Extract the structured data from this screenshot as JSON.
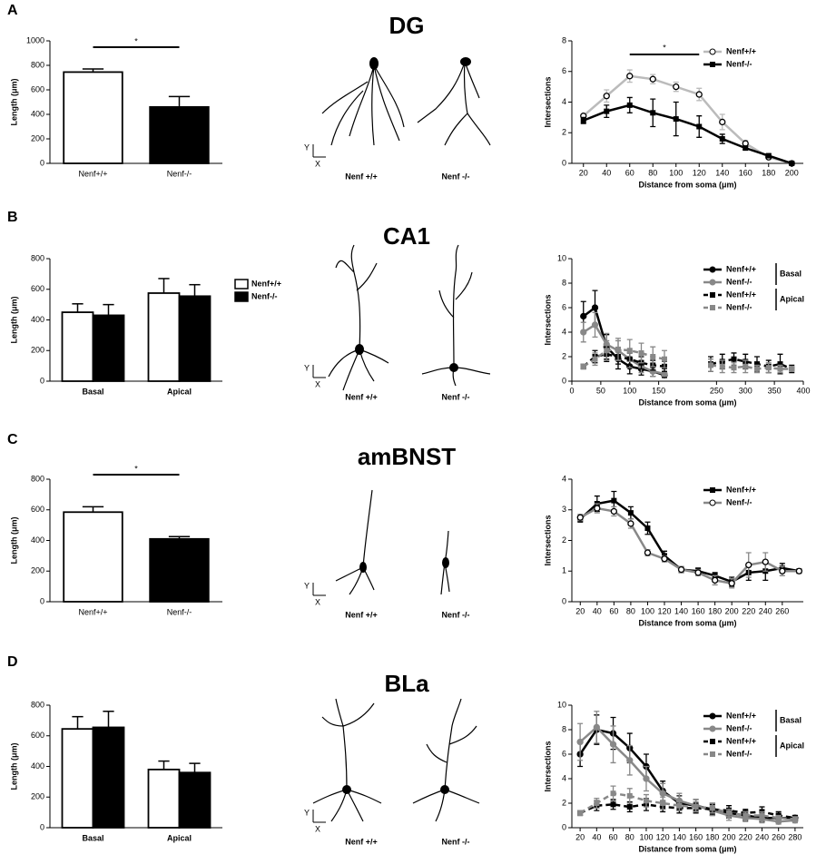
{
  "panels": [
    {
      "letter": "A",
      "title": "DG",
      "neurons": [
        "Nenf +/+",
        "Nenf -/-"
      ]
    },
    {
      "letter": "B",
      "title": "CA1",
      "neurons": [
        "Nenf +/+",
        "Nenf -/-"
      ]
    },
    {
      "letter": "C",
      "title": "amBNST",
      "neurons": [
        "Nenf +/+",
        "Nenf -/-"
      ]
    },
    {
      "letter": "D",
      "title": "BLa",
      "neurons": [
        "Nenf +/+",
        "Nenf -/-"
      ]
    }
  ],
  "compass": {
    "y": "Y",
    "x": "X"
  },
  "chart_data": [
    {
      "type": "bar",
      "ylabel": "Length (μm)",
      "categories": [
        "Nenf+/+",
        "Nenf-/-"
      ],
      "values": [
        745,
        460
      ],
      "errors": [
        25,
        85
      ],
      "colors": [
        "#ffffff",
        "#000000"
      ],
      "ylim": [
        0,
        1000
      ],
      "yticks": [
        0,
        200,
        400,
        600,
        800,
        1000
      ],
      "annotation": "*"
    },
    {
      "type": "line",
      "ylabel": "Intersections",
      "xlabel": "Distance from soma (μm)",
      "x": [
        20,
        40,
        60,
        80,
        100,
        120,
        140,
        160,
        180,
        200
      ],
      "xlim": [
        10,
        210
      ],
      "xticks": [
        20,
        40,
        60,
        80,
        100,
        120,
        140,
        160,
        180,
        200
      ],
      "ylim": [
        0,
        8
      ],
      "yticks": [
        0,
        2,
        4,
        6,
        8
      ],
      "legend": "upper right",
      "annotation": {
        "text": "*",
        "x": [
          60,
          120
        ]
      },
      "series": [
        {
          "name": "Nenf+/+",
          "color": "#bbbbbb",
          "marker": "open-circle",
          "values": [
            3.1,
            4.4,
            5.7,
            5.5,
            5.0,
            4.5,
            2.7,
            1.3,
            0.4,
            0.0
          ],
          "errors": [
            0.1,
            0.4,
            0.4,
            0.3,
            0.3,
            0.4,
            0.5,
            0.2,
            0.1,
            0
          ]
        },
        {
          "name": "Nenf-/-",
          "color": "#000000",
          "marker": "square",
          "values": [
            2.8,
            3.4,
            3.8,
            3.3,
            2.9,
            2.4,
            1.6,
            1.0,
            0.5,
            0.0
          ],
          "errors": [
            0.2,
            0.4,
            0.5,
            0.9,
            1.1,
            0.7,
            0.3,
            0.1,
            0.1,
            0
          ]
        }
      ]
    },
    {
      "type": "bar",
      "ylabel": "Length (μm)",
      "categories": [
        "Basal",
        "Apical"
      ],
      "ylim": [
        0,
        800
      ],
      "yticks": [
        0,
        200,
        400,
        600,
        800
      ],
      "legend": "right",
      "series": [
        {
          "name": "Nenf+/+",
          "color": "#ffffff",
          "values": [
            450,
            575
          ],
          "errors": [
            55,
            95
          ]
        },
        {
          "name": "Nenf-/-",
          "color": "#000000",
          "values": [
            430,
            555
          ],
          "errors": [
            70,
            75
          ]
        }
      ]
    },
    {
      "type": "line",
      "ylabel": "Intersections",
      "xlabel": "Distance from soma (μm)",
      "x": [
        20,
        40,
        60,
        80,
        100,
        120,
        140,
        160,
        180,
        200,
        220,
        240,
        260,
        280,
        300,
        320,
        340,
        360,
        380
      ],
      "xlim": [
        0,
        400
      ],
      "xticks": [
        0,
        50,
        100,
        150,
        250,
        300,
        350,
        400
      ],
      "ylim": [
        0,
        10
      ],
      "yticks": [
        0,
        2,
        4,
        6,
        8,
        10
      ],
      "legend": "upper right",
      "legend_groups": [
        "Basal",
        "Apical"
      ],
      "series": [
        {
          "name": "Nenf+/+",
          "color": "#000000",
          "marker": "circle",
          "values": [
            5.3,
            6.0,
            2.8,
            1.8,
            1.2,
            1.0,
            0.8,
            0.5,
            null,
            null,
            null,
            null,
            null,
            null,
            null,
            null,
            null,
            null,
            null
          ],
          "errors": [
            1.2,
            1.4,
            1.0,
            0.8,
            0.6,
            0.5,
            0.4,
            0.2,
            null,
            null,
            null,
            null,
            null,
            null,
            null,
            null,
            null,
            null,
            null
          ]
        },
        {
          "name": "Nenf-/-",
          "color": "#888888",
          "marker": "circle",
          "values": [
            4.0,
            4.6,
            3.0,
            2.5,
            1.8,
            1.2,
            0.8,
            0.6,
            null,
            null,
            null,
            null,
            null,
            null,
            null,
            null,
            null,
            null,
            null
          ],
          "errors": [
            0.8,
            1.0,
            0.9,
            0.8,
            0.7,
            0.5,
            0.4,
            0.2,
            null,
            null,
            null,
            null,
            null,
            null,
            null,
            null,
            null,
            null,
            null
          ]
        },
        {
          "name": "Nenf+/+",
          "color": "#000000",
          "marker": "square",
          "dash": true,
          "values": [
            1.2,
            2.0,
            2.2,
            2.0,
            1.8,
            1.5,
            1.3,
            1.2,
            null,
            null,
            null,
            1.4,
            1.6,
            1.8,
            1.6,
            1.4,
            1.2,
            1.4,
            1.0
          ],
          "errors": [
            0.2,
            0.5,
            0.6,
            0.6,
            0.5,
            0.5,
            0.4,
            0.4,
            null,
            null,
            null,
            0.6,
            0.6,
            0.5,
            0.6,
            0.6,
            0.5,
            0.8,
            0.3
          ]
        },
        {
          "name": "Nenf-/-",
          "color": "#888888",
          "marker": "square",
          "dash": true,
          "values": [
            1.2,
            1.8,
            2.5,
            2.6,
            2.5,
            2.3,
            2.0,
            1.8,
            null,
            null,
            null,
            1.3,
            1.2,
            1.1,
            1.2,
            1.0,
            1.1,
            1.0,
            1.0
          ],
          "errors": [
            0.2,
            0.5,
            0.8,
            0.9,
            0.9,
            0.8,
            0.8,
            0.7,
            null,
            null,
            null,
            0.5,
            0.5,
            0.4,
            0.5,
            0.3,
            0.4,
            0.3,
            0.2
          ]
        }
      ]
    },
    {
      "type": "bar",
      "ylabel": "Length (μm)",
      "categories": [
        "Nenf+/+",
        "Nenf-/-"
      ],
      "values": [
        585,
        410
      ],
      "errors": [
        35,
        15
      ],
      "colors": [
        "#ffffff",
        "#000000"
      ],
      "ylim": [
        0,
        800
      ],
      "yticks": [
        0,
        200,
        400,
        600,
        800
      ],
      "annotation": "*"
    },
    {
      "type": "line",
      "ylabel": "Intersections",
      "xlabel": "Distance from soma (μm)",
      "x": [
        20,
        40,
        60,
        80,
        100,
        120,
        140,
        160,
        180,
        200,
        220,
        240,
        260,
        280
      ],
      "xlim": [
        10,
        285
      ],
      "xticks": [
        20,
        40,
        60,
        80,
        100,
        120,
        140,
        160,
        180,
        200,
        220,
        240,
        260
      ],
      "ylim": [
        0,
        4
      ],
      "yticks": [
        0,
        1,
        2,
        3,
        4
      ],
      "legend": "upper right",
      "series": [
        {
          "name": "Nenf+/+",
          "color": "#000000",
          "marker": "square",
          "values": [
            2.7,
            3.2,
            3.3,
            2.9,
            2.4,
            1.5,
            1.05,
            1.0,
            0.85,
            0.65,
            0.95,
            1.0,
            1.1,
            1.0
          ],
          "errors": [
            0.1,
            0.25,
            0.3,
            0.2,
            0.2,
            0.15,
            0.1,
            0.1,
            0.1,
            0.15,
            0.25,
            0.3,
            0.15,
            0.05
          ]
        },
        {
          "name": "Nenf-/-",
          "color": "#888888",
          "marker": "open-circle",
          "values": [
            2.75,
            3.05,
            2.95,
            2.55,
            1.6,
            1.4,
            1.05,
            0.95,
            0.7,
            0.6,
            1.2,
            1.3,
            1.0,
            1.0
          ],
          "errors": [
            0.1,
            0.15,
            0.15,
            0.15,
            0.1,
            0.1,
            0.1,
            0.1,
            0.15,
            0.15,
            0.4,
            0.3,
            0.15,
            0.05
          ]
        }
      ]
    },
    {
      "type": "bar",
      "ylabel": "Length (μm)",
      "categories": [
        "Basal",
        "Apical"
      ],
      "ylim": [
        0,
        800
      ],
      "yticks": [
        0,
        200,
        400,
        600,
        800
      ],
      "series": [
        {
          "color": "#ffffff",
          "values": [
            645,
            380
          ],
          "errors": [
            80,
            55
          ]
        },
        {
          "color": "#000000",
          "values": [
            655,
            360
          ],
          "errors": [
            105,
            60
          ]
        }
      ]
    },
    {
      "type": "line",
      "ylabel": "Intersections",
      "xlabel": "Distance from soma (μm)",
      "x": [
        20,
        40,
        60,
        80,
        100,
        120,
        140,
        160,
        180,
        200,
        220,
        240,
        260,
        280
      ],
      "xlim": [
        10,
        290
      ],
      "xticks": [
        20,
        40,
        60,
        80,
        100,
        120,
        140,
        160,
        180,
        200,
        220,
        240,
        260,
        280
      ],
      "ylim": [
        0,
        10
      ],
      "yticks": [
        0,
        2,
        4,
        6,
        8,
        10
      ],
      "legend": "upper right",
      "legend_groups": [
        "Basal",
        "Apical"
      ],
      "series": [
        {
          "name": "Nenf+/+",
          "color": "#000000",
          "marker": "circle",
          "values": [
            6.0,
            8.0,
            7.7,
            6.5,
            5.0,
            3.0,
            2.0,
            1.8,
            1.5,
            1.2,
            1.0,
            0.8,
            0.8,
            0.8
          ],
          "errors": [
            1.0,
            1.2,
            1.3,
            1.2,
            1.0,
            0.8,
            0.6,
            0.5,
            0.5,
            0.4,
            0.4,
            0.3,
            0.3,
            0.2
          ]
        },
        {
          "name": "Nenf-/-",
          "color": "#888888",
          "marker": "circle",
          "values": [
            7.0,
            8.2,
            6.8,
            5.5,
            4.0,
            2.8,
            2.2,
            1.8,
            1.4,
            1.0,
            0.8,
            0.7,
            0.5,
            0.6
          ],
          "errors": [
            1.5,
            1.3,
            1.5,
            1.2,
            1.0,
            0.8,
            0.6,
            0.5,
            0.4,
            0.4,
            0.3,
            0.3,
            0.2,
            0.2
          ]
        },
        {
          "name": "Nenf+/+",
          "color": "#000000",
          "marker": "square",
          "dash": true,
          "values": [
            1.2,
            1.8,
            1.9,
            1.7,
            1.9,
            1.7,
            1.6,
            1.6,
            1.5,
            1.4,
            1.2,
            1.3,
            1.0,
            0.8
          ],
          "errors": [
            0.2,
            0.4,
            0.4,
            0.4,
            0.5,
            0.4,
            0.4,
            0.4,
            0.4,
            0.4,
            0.3,
            0.4,
            0.3,
            0.2
          ]
        },
        {
          "name": "Nenf-/-",
          "color": "#888888",
          "marker": "square",
          "dash": true,
          "values": [
            1.2,
            2.0,
            2.8,
            2.6,
            2.2,
            2.0,
            1.8,
            1.7,
            1.6,
            1.2,
            1.0,
            1.0,
            0.8,
            0.7
          ],
          "errors": [
            0.2,
            0.4,
            0.6,
            0.6,
            0.5,
            0.5,
            0.4,
            0.4,
            0.4,
            0.3,
            0.3,
            0.3,
            0.2,
            0.2
          ]
        }
      ]
    }
  ]
}
